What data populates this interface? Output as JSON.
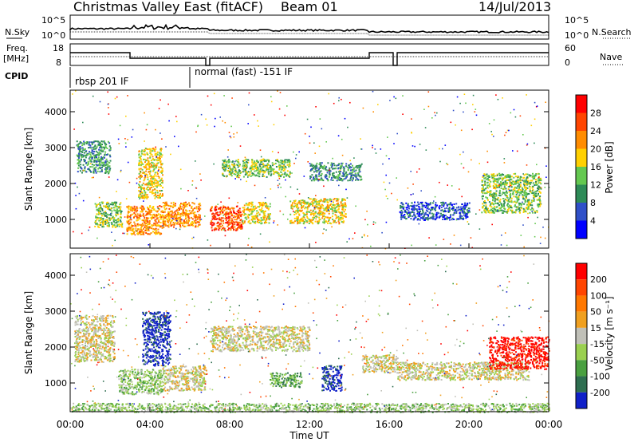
{
  "header": {
    "title": "Christmas Valley East (fitACF)",
    "beam": "Beam 01",
    "date": "14/Jul/2013"
  },
  "params": {
    "nsky_label": "N.Sky",
    "nsearch_label": "N.Search",
    "freq_label": "Freq.",
    "freq_unit": "[MHz]",
    "nave_label": "Nave",
    "cpid_label": "CPID",
    "power_exp_top": "10^5",
    "power_exp_bottom": "10^0",
    "freq_ticks": [
      "18",
      "8"
    ],
    "nave_ticks": [
      "60",
      "0"
    ],
    "cpid_segments": [
      {
        "start_hour": 0,
        "label": "rbsp 201 IF"
      },
      {
        "start_hour": 6.0,
        "label": "normal (fast) -151 IF"
      }
    ]
  },
  "chart_data": [
    {
      "type": "heatmap",
      "name": "power-panel",
      "ylabel": "Slant Range [km]",
      "xlabel": "",
      "yticks": [
        1000,
        2000,
        3000,
        4000
      ],
      "ylim": [
        200,
        4600
      ],
      "xlim": [
        0,
        24
      ],
      "colorbar_label": "Power [dB]",
      "colorbar_ticks": [
        "28",
        "24",
        "20",
        "16",
        "12",
        "8",
        "4"
      ],
      "colors": [
        "#0000ff",
        "#3050c8",
        "#2e8b57",
        "#64c850",
        "#ffd000",
        "#ff8c00",
        "#ff4500",
        "#ff0000"
      ],
      "regions": [
        {
          "t": [
            0.3,
            2.0
          ],
          "r": [
            2300,
            3200
          ],
          "level": 2
        },
        {
          "t": [
            1.2,
            2.6
          ],
          "r": [
            800,
            1500
          ],
          "level": 3
        },
        {
          "t": [
            2.8,
            4.6
          ],
          "r": [
            600,
            1400
          ],
          "level": 5
        },
        {
          "t": [
            3.4,
            4.6
          ],
          "r": [
            1600,
            3000
          ],
          "level": 4
        },
        {
          "t": [
            4.6,
            6.5
          ],
          "r": [
            800,
            1500
          ],
          "level": 5
        },
        {
          "t": [
            7.0,
            8.6
          ],
          "r": [
            700,
            1400
          ],
          "level": 6
        },
        {
          "t": [
            8.6,
            10.0
          ],
          "r": [
            900,
            1500
          ],
          "level": 4
        },
        {
          "t": [
            7.6,
            11.0
          ],
          "r": [
            2200,
            2700
          ],
          "level": 3
        },
        {
          "t": [
            11.0,
            13.8
          ],
          "r": [
            900,
            1600
          ],
          "level": 4
        },
        {
          "t": [
            12.0,
            14.6
          ],
          "r": [
            2100,
            2600
          ],
          "level": 2
        },
        {
          "t": [
            16.5,
            20.0
          ],
          "r": [
            1000,
            1500
          ],
          "level": 1
        },
        {
          "t": [
            20.6,
            23.6
          ],
          "r": [
            1200,
            2300
          ],
          "level": 3
        }
      ]
    },
    {
      "type": "heatmap",
      "name": "velocity-panel",
      "ylabel": "Slant Range [km]",
      "xlabel": "Time UT",
      "yticks": [
        1000,
        2000,
        3000,
        4000
      ],
      "ylim": [
        200,
        4600
      ],
      "xlim": [
        0,
        24
      ],
      "xticks": [
        "00:00",
        "04:00",
        "08:00",
        "12:00",
        "16:00",
        "20:00",
        "00:00"
      ],
      "colorbar_label": "Velocity [m s⁻¹]",
      "colorbar_ticks": [
        "200",
        "100",
        "50",
        "15",
        "-15",
        "-50",
        "-100",
        "-200"
      ],
      "colors": [
        "#1020c8",
        "#2e6e50",
        "#4aa040",
        "#9ad050",
        "#c0c0b8",
        "#f0a020",
        "#ff7800",
        "#ff4500",
        "#ff0000"
      ],
      "regions": [
        {
          "t": [
            0.2,
            2.2
          ],
          "r": [
            1600,
            2900
          ],
          "level": 4
        },
        {
          "t": [
            3.6,
            5.0
          ],
          "r": [
            1500,
            3000
          ],
          "level": 0
        },
        {
          "t": [
            4.6,
            6.8
          ],
          "r": [
            800,
            1500
          ],
          "level": 4
        },
        {
          "t": [
            2.4,
            4.6
          ],
          "r": [
            700,
            1400
          ],
          "level": 3
        },
        {
          "t": [
            7.0,
            12.0
          ],
          "r": [
            1900,
            2600
          ],
          "level": 4
        },
        {
          "t": [
            10.0,
            11.6
          ],
          "r": [
            900,
            1300
          ],
          "level": 2
        },
        {
          "t": [
            12.6,
            13.6
          ],
          "r": [
            800,
            1500
          ],
          "level": 0
        },
        {
          "t": [
            14.6,
            16.4
          ],
          "r": [
            1300,
            1800
          ],
          "level": 4
        },
        {
          "t": [
            16.4,
            23.0
          ],
          "r": [
            1100,
            1600
          ],
          "level": 4
        },
        {
          "t": [
            21.0,
            24.0
          ],
          "r": [
            1400,
            2300
          ],
          "level": 8
        },
        {
          "t": [
            0,
            24
          ],
          "r": [
            200,
            450
          ],
          "level": 3
        }
      ]
    }
  ]
}
